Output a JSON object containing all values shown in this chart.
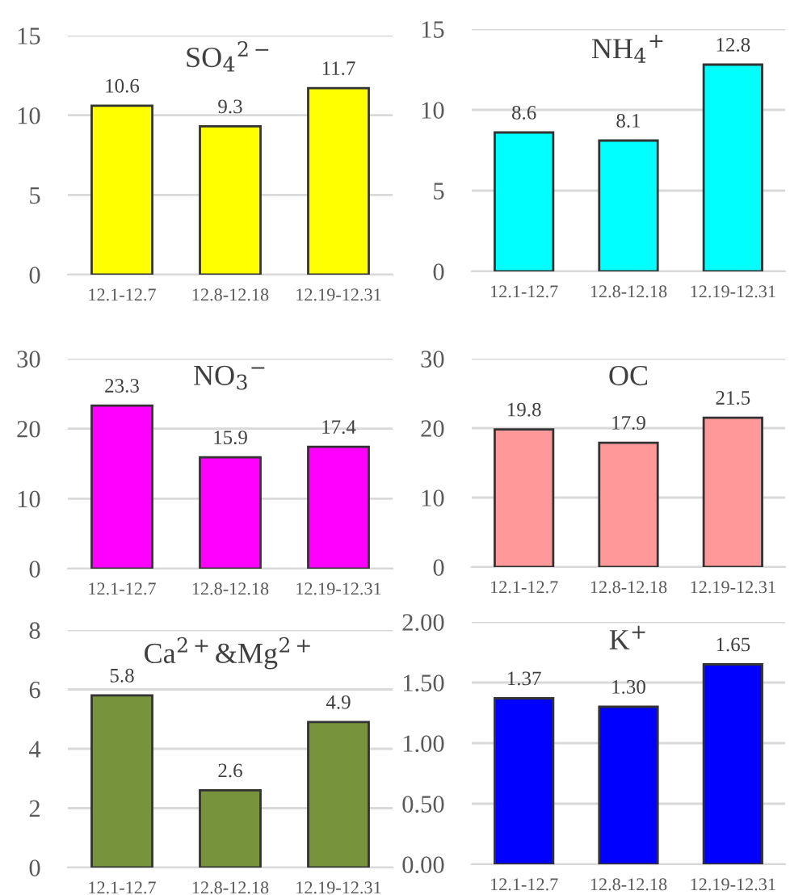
{
  "chart_data": [
    {
      "type": "bar",
      "title": "SO$_{4}$$^{2−}$",
      "categories": [
        "12.1-12.7",
        "12.8-12.18",
        "12.19-12.31"
      ],
      "values": [
        10.6,
        9.3,
        11.7
      ],
      "color": "#ffff00",
      "value_labels": [
        "10.6",
        "9.3",
        "11.7"
      ],
      "ylim": [
        0,
        15
      ],
      "yticks": [
        0,
        5,
        10,
        15
      ],
      "grid": "y"
    },
    {
      "type": "bar",
      "title": "NH$_{4}$$^{+}$",
      "categories": [
        "12.1-12.7",
        "12.8-12.18",
        "12.19-12.31"
      ],
      "values": [
        8.6,
        8.1,
        12.8
      ],
      "color": "#00ffff",
      "value_labels": [
        "8.6",
        "8.1",
        "12.8"
      ],
      "ylim": [
        0,
        15
      ],
      "yticks": [
        0,
        5,
        10,
        15
      ],
      "grid": "y"
    },
    {
      "type": "bar",
      "title": "NO$_{3}$$^{−}$",
      "categories": [
        "12.1-12.7",
        "12.8-12.18",
        "12.19-12.31"
      ],
      "values": [
        23.3,
        15.9,
        17.4
      ],
      "color": "#ff00ff",
      "value_labels": [
        "23.3",
        "15.9",
        "17.4"
      ],
      "ylim": [
        0,
        30
      ],
      "yticks": [
        0,
        10,
        20,
        30
      ],
      "grid": "y"
    },
    {
      "type": "bar",
      "title": "OC",
      "categories": [
        "12.1-12.7",
        "12.8-12.18",
        "12.19-12.31"
      ],
      "values": [
        19.8,
        17.9,
        21.5
      ],
      "color": "#ff9999",
      "value_labels": [
        "19.8",
        "17.9",
        "21.5"
      ],
      "ylim": [
        0,
        30
      ],
      "yticks": [
        0,
        10,
        20,
        30
      ],
      "grid": "y"
    },
    {
      "type": "bar",
      "title": "Ca$^{2+}$&Mg$^{2+}$",
      "categories": [
        "12.1-12.7",
        "12.8-12.18",
        "12.19-12.31"
      ],
      "values": [
        5.8,
        2.6,
        4.9
      ],
      "color": "#77933c",
      "value_labels": [
        "5.8",
        "2.6",
        "4.9"
      ],
      "ylim": [
        0,
        8
      ],
      "yticks": [
        0,
        2,
        4,
        6,
        8
      ],
      "grid": "y"
    },
    {
      "type": "bar",
      "title": "K$^{+}$",
      "categories": [
        "12.1-12.7",
        "12.8-12.18",
        "12.19-12.31"
      ],
      "values": [
        1.37,
        1.3,
        1.65
      ],
      "color": "#0000ff",
      "value_labels": [
        "1.37",
        "1.30",
        "1.65"
      ],
      "ylim": [
        0,
        2
      ],
      "yticks": [
        {
          "value": 0,
          "label": "0.00"
        },
        {
          "value": 0.5,
          "label": "0.50"
        },
        {
          "value": 1,
          "label": "1.00"
        },
        {
          "value": 1.5,
          "label": "1.50"
        },
        {
          "value": 2,
          "label": "2.00"
        }
      ],
      "grid": "y"
    }
  ]
}
